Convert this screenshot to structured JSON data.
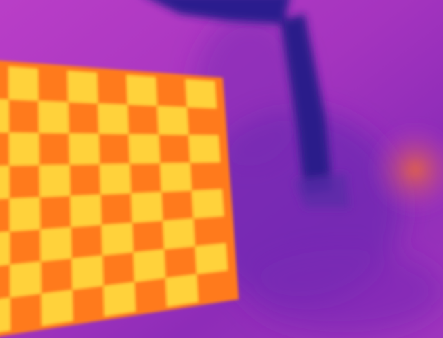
{
  "image": {
    "kind": "thermal-camera-frame",
    "palette": "ironbow",
    "subject": "heated-checkerboard-calibration-target",
    "colors": {
      "background_warm": "#b23ac2",
      "background_mid": "#9a2fb4",
      "background_cool": "#6b24b0",
      "shadow_cold": "#2a1b8c",
      "board_orange": "#ff7a1e",
      "board_yellow": "#ffd23a",
      "hotspot_right": "#e9582f"
    },
    "checkerboard": {
      "cols": 7,
      "rows": 8
    }
  }
}
